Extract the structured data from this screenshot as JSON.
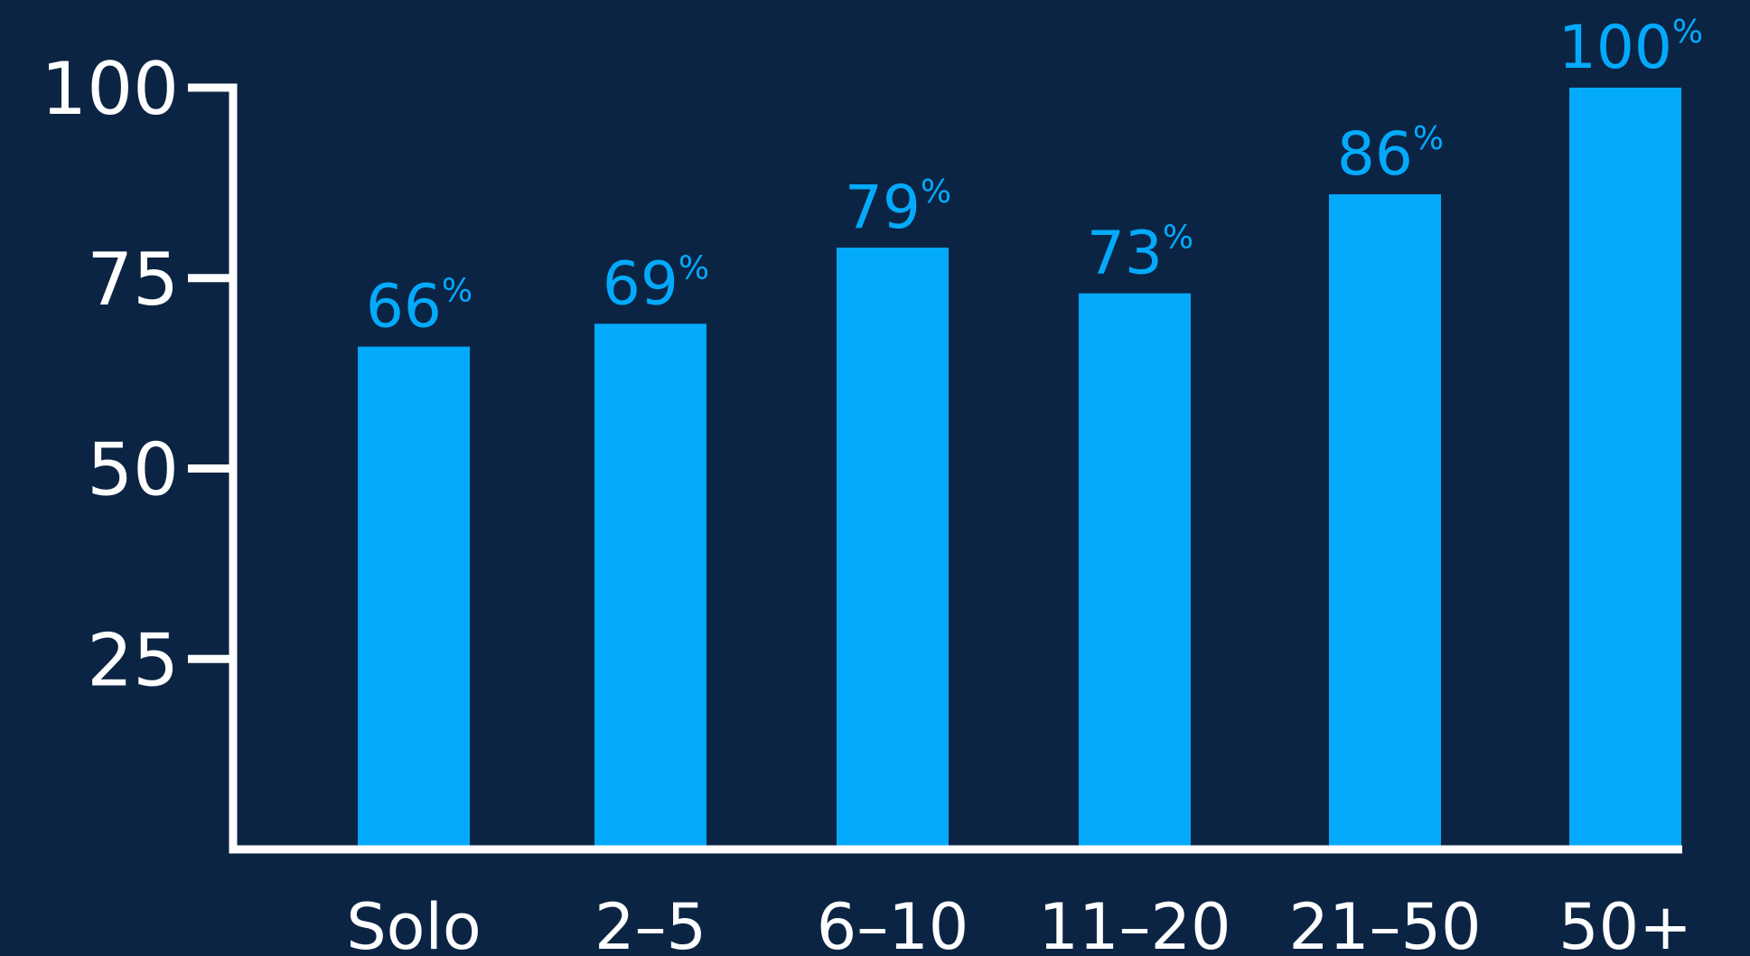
{
  "colors": {
    "background": "#0c2444",
    "bar": "#03aafc",
    "axis": "#ffffff",
    "tick_label": "#ffffff",
    "value_label": "#03aafc"
  },
  "chart_data": {
    "type": "bar",
    "title": "",
    "xlabel": "",
    "ylabel": "",
    "categories": [
      "Solo",
      "2–5",
      "6–10",
      "11–20",
      "21–50",
      "50+"
    ],
    "values": [
      66,
      69,
      79,
      73,
      86,
      100
    ],
    "data_labels": [
      "66",
      "69",
      "79",
      "73",
      "86",
      "100"
    ],
    "data_label_suffix": "%",
    "y_ticks": [
      25,
      50,
      75,
      100
    ],
    "ylim": [
      0,
      100
    ],
    "grid": false,
    "legend": "none"
  }
}
